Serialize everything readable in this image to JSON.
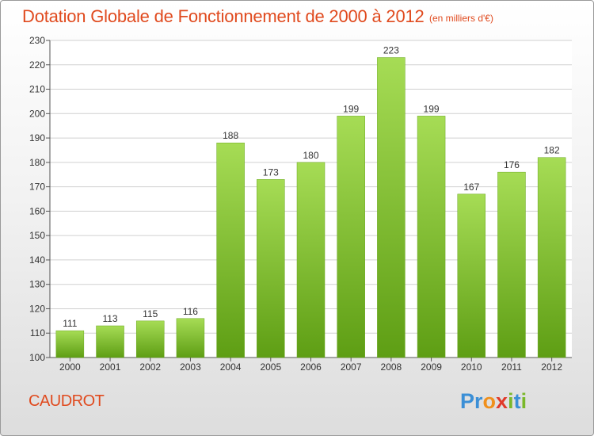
{
  "chart_data": {
    "type": "bar",
    "title": "Dotation Globale de Fonctionnement de 2000 à 2012",
    "unit_note": "(en milliers d'€)",
    "xlabel": "",
    "ylabel": "",
    "categories": [
      "2000",
      "2001",
      "2002",
      "2003",
      "2004",
      "2005",
      "2006",
      "2007",
      "2008",
      "2009",
      "2010",
      "2011",
      "2012"
    ],
    "values": [
      111,
      113,
      115,
      116,
      188,
      173,
      180,
      199,
      223,
      199,
      167,
      176,
      182
    ],
    "ylim": [
      100,
      230
    ],
    "yticks": [
      100,
      110,
      120,
      130,
      140,
      150,
      160,
      170,
      180,
      190,
      200,
      210,
      220,
      230
    ],
    "grid": true,
    "legend": "none",
    "bar_color": "#7fbf2e",
    "bar_color_light": "#a6dc55",
    "bar_color_dark": "#5e9e14"
  },
  "footer": {
    "commune": "CAUDROT",
    "logo_letters": [
      {
        "ch": "P",
        "color": "#3b8fd6"
      },
      {
        "ch": "r",
        "color": "#3b8fd6"
      },
      {
        "ch": "o",
        "color": "#f0901c"
      },
      {
        "ch": "x",
        "color": "#e03a2a"
      },
      {
        "ch": "i",
        "color": "#7ab82a"
      },
      {
        "ch": "t",
        "color": "#3b8fd6"
      },
      {
        "ch": "i",
        "color": "#7ab82a"
      }
    ]
  },
  "colors": {
    "title": "#e04a1e",
    "axis_text": "#333333",
    "grid": "#d0d0d0"
  }
}
